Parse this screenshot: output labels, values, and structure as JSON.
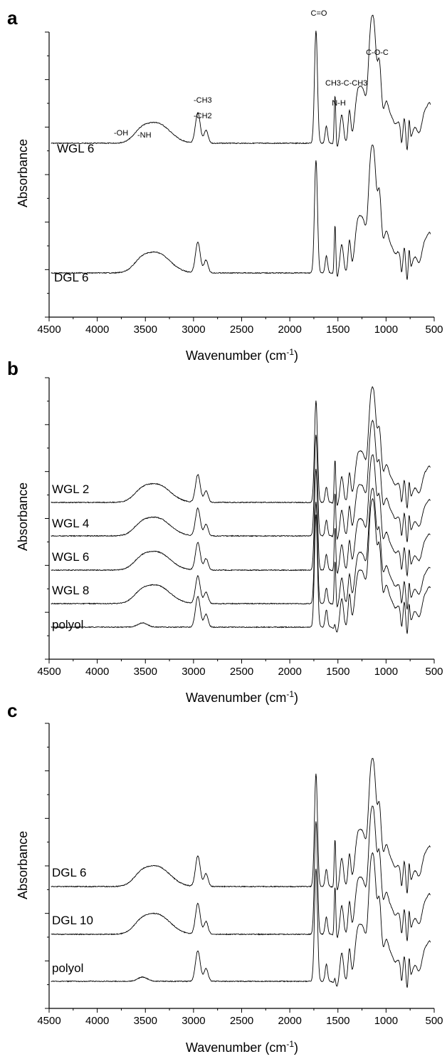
{
  "chart_data": [
    {
      "panel": "a",
      "type": "line",
      "xlabel": "Wavenumber (cm",
      "xlabel_sup": "-1",
      "xlabel_end": ")",
      "ylabel": "Absorbance",
      "xlim": [
        4500,
        500
      ],
      "x_ticks": [
        "4500",
        "4000",
        "3500",
        "3000",
        "2500",
        "2000",
        "1500",
        "1000",
        "500"
      ],
      "series": [
        {
          "name": "WGL 6",
          "profile": "dgl"
        },
        {
          "name": "DGL 6",
          "profile": "dgl"
        }
      ],
      "annotations": [
        {
          "text": "C=O",
          "x": 1730
        },
        {
          "text": "C-O-C",
          "x": 1150
        },
        {
          "text": "CH3-C-CH3",
          "x": 1280
        },
        {
          "text": "N-H",
          "x": 1530
        },
        {
          "text": "-CH3",
          "x": 2960
        },
        {
          "text": "-CH2",
          "x": 2960
        },
        {
          "text": "-OH",
          "x": 3520
        },
        {
          "text": "-NH",
          "x": 3330
        }
      ]
    },
    {
      "panel": "b",
      "type": "line",
      "xlabel": "Wavenumber (cm",
      "xlabel_sup": "-1",
      "xlabel_end": ")",
      "ylabel": "Absorbance",
      "xlim": [
        4500,
        500
      ],
      "x_ticks": [
        "4500",
        "4000",
        "3500",
        "3000",
        "2500",
        "2000",
        "1500",
        "1000",
        "500"
      ],
      "series": [
        {
          "name": "WGL 2",
          "profile": "wgl"
        },
        {
          "name": "WGL 4",
          "profile": "wgl"
        },
        {
          "name": "WGL 6",
          "profile": "wgl"
        },
        {
          "name": "WGL 8",
          "profile": "wgl"
        },
        {
          "name": "polyol",
          "profile": "polyol"
        }
      ]
    },
    {
      "panel": "c",
      "type": "line",
      "xlabel": "Wavenumber (cm",
      "xlabel_sup": "-1",
      "xlabel_end": ")",
      "ylabel": "Absorbance",
      "xlim": [
        4500,
        500
      ],
      "x_ticks": [
        "4500",
        "4000",
        "3500",
        "3000",
        "2500",
        "2000",
        "1500",
        "1000",
        "500"
      ],
      "series": [
        {
          "name": "DGL 6",
          "profile": "dgl"
        },
        {
          "name": "DGL 10",
          "profile": "dgl"
        },
        {
          "name": "polyol",
          "profile": "polyol"
        }
      ]
    }
  ]
}
